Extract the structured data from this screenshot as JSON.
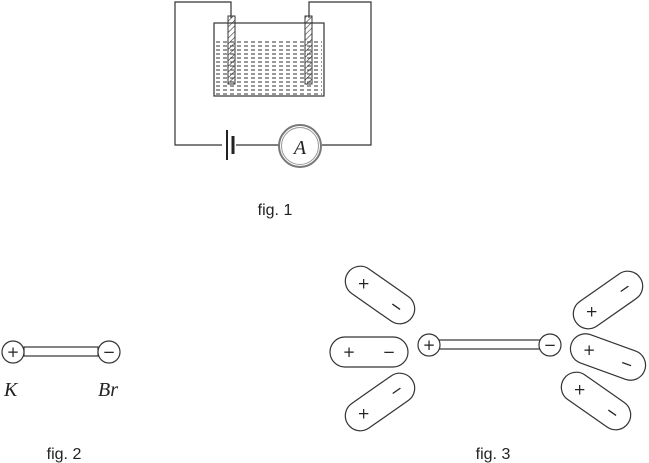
{
  "figures": {
    "fig1": {
      "caption": "fig. 1",
      "ammeter_symbol": "A"
    },
    "fig2": {
      "caption": "fig. 2",
      "left_label": "K",
      "right_label": "Br",
      "left_charge": "+",
      "right_charge": "−"
    },
    "fig3": {
      "caption": "fig. 3",
      "center_left_charge": "+",
      "center_right_charge": "−",
      "dipole_plus": "+",
      "dipole_minus": "−"
    }
  }
}
